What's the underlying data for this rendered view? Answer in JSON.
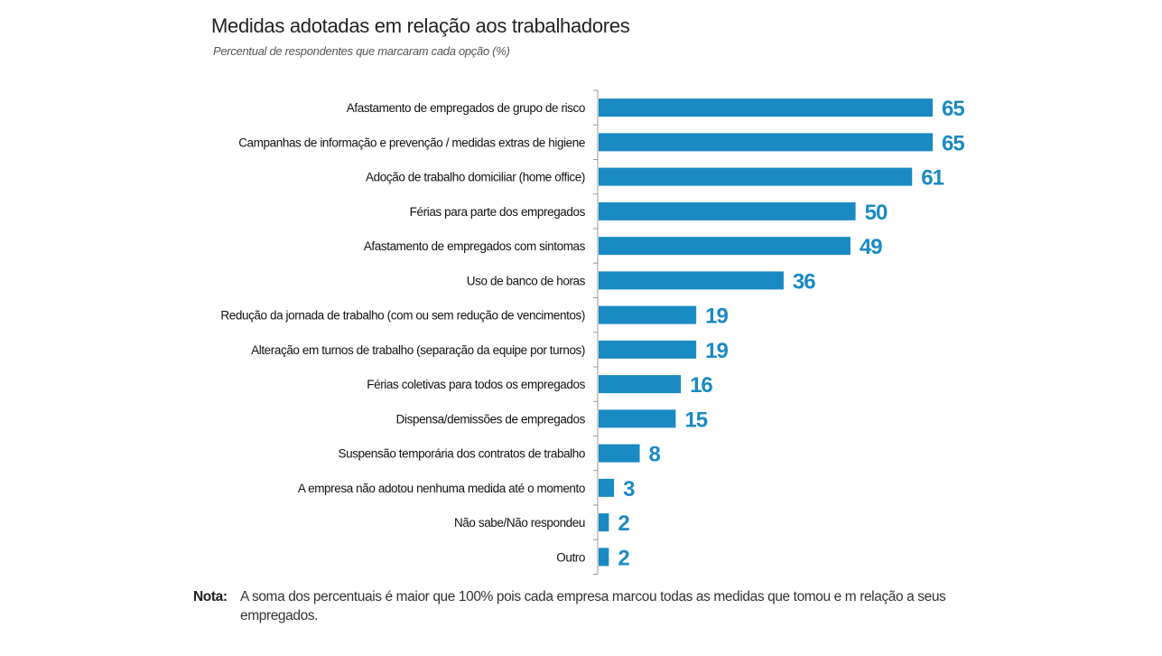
{
  "chart_data": {
    "type": "bar",
    "orientation": "horizontal",
    "title": "Medidas adotadas em relação aos trabalhadores",
    "subtitle": "Percentual de respondentes que marcaram cada opção (%)",
    "xlabel": "",
    "ylabel": "",
    "xlim": [
      0,
      65
    ],
    "grid": false,
    "legend": null,
    "bar_color": "#1a8ac3",
    "value_label_color": "#1a8ac3",
    "categories": [
      "Afastamento de empregados de grupo de risco",
      "Campanhas de informação e prevenção / medidas extras de higiene",
      "Adoção de trabalho domiciliar (home office)",
      "Férias para parte dos empregados",
      "Afastamento de empregados com sintomas",
      "Uso de banco de horas",
      "Redução da jornada de trabalho (com ou sem redução de vencimentos)",
      "Alteração em turnos de trabalho (separação da equipe por turnos)",
      "Férias coletivas para todos os empregados",
      "Dispensa/demissões de empregados",
      "Suspensão temporária dos contratos de trabalho",
      "A empresa não adotou nenhuma medida até o momento",
      "Não sabe/Não respondeu",
      "Outro"
    ],
    "values": [
      65,
      65,
      61,
      50,
      49,
      36,
      19,
      19,
      16,
      15,
      8,
      3,
      2,
      2
    ]
  },
  "note": {
    "key": "Nota:",
    "text": "A soma dos percentuais é maior que 100% pois cada empresa marcou todas as medidas que tomou e m relação a seus empregados."
  }
}
